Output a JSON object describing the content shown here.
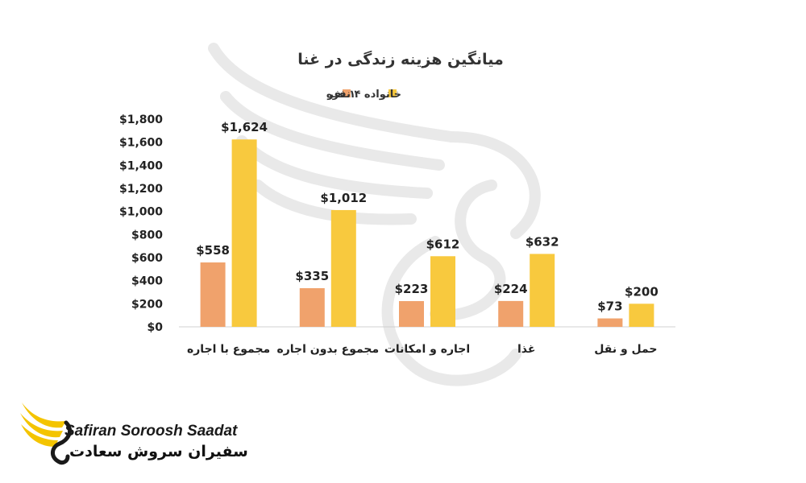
{
  "chart_data": {
    "type": "bar",
    "title": "میانگین هزینه زندگی در غنا",
    "categories": [
      "مجموع با اجاره",
      "مجموع بدون اجاره",
      "اجاره و امکانات",
      "غذا",
      "حمل و نقل"
    ],
    "series": [
      {
        "name": "۱ نفر",
        "color": "#f0a26c",
        "values": [
          558,
          335,
          223,
          224,
          73
        ],
        "labels": [
          "$558",
          "$335",
          "$223",
          "$224",
          "$73"
        ]
      },
      {
        "name": "خانواده ۴ نفره",
        "color": "#f8c93e",
        "values": [
          1624,
          1012,
          612,
          632,
          200
        ],
        "labels": [
          "$1,624",
          "$1,012",
          "$612",
          "$632",
          "$200"
        ]
      }
    ],
    "ylim": [
      0,
      1800
    ],
    "yticks": [
      0,
      200,
      400,
      600,
      800,
      1000,
      1200,
      1400,
      1600,
      1800
    ],
    "ytick_labels": [
      "$0",
      "$200",
      "$400",
      "$600",
      "$800",
      "$1,000",
      "$1,200",
      "$1,400",
      "$1,600",
      "$1,800"
    ],
    "xlabel": "",
    "ylabel": "",
    "legend_position": "top",
    "grid": false
  },
  "logo": {
    "english": "Safiran Soroosh Saadat",
    "persian": "سفیران سروش سعادت"
  }
}
